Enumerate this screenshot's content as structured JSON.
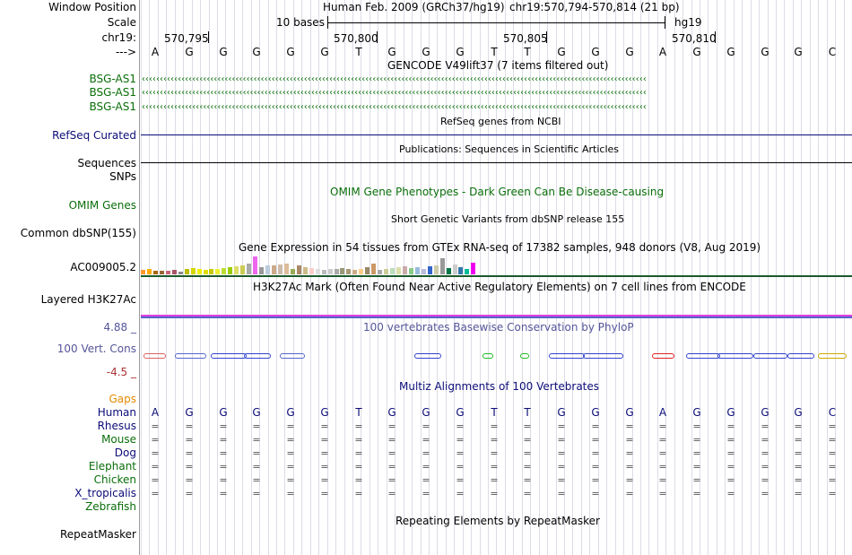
{
  "header": {
    "window_position_label": "Window Position",
    "scale_label": "Scale",
    "chr_label": "chr19:",
    "strand_label": "--->",
    "assembly": "Human Feb. 2009 (GRCh37/hg19)",
    "region": "chr19:570,794-570,814 (21 bp)",
    "scale_text": "10 bases",
    "db": "hg19",
    "ticks": [
      "570,795",
      "570,800",
      "570,805",
      "570,810"
    ]
  },
  "sequence": [
    "A",
    "G",
    "G",
    "G",
    "G",
    "G",
    "T",
    "G",
    "G",
    "G",
    "T",
    "T",
    "G",
    "G",
    "G",
    "A",
    "G",
    "G",
    "G",
    "G",
    "C"
  ],
  "tracks": {
    "gencode_title": "GENCODE V49lift37 (7 items filtered out)",
    "gencode_items": [
      "BSG-AS1",
      "BSG-AS1",
      "BSG-AS1"
    ],
    "refseq_title": "RefSeq genes from NCBI",
    "refseq_label": "RefSeq Curated",
    "pubs_title": "Publications: Sequences in Scientific Articles",
    "sequences_label": "Sequences",
    "snps_label": "SNPs",
    "omim_title": "OMIM Gene Phenotypes - Dark Green Can Be Disease-causing",
    "omim_label": "OMIM Genes",
    "dbsnp_title": "Short Genetic Variants from dbSNP release 155",
    "dbsnp_label": "Common dbSNP(155)",
    "gtex_title": "Gene Expression in 54 tissues from GTEx RNA-seq of 17382 samples, 948 donors (V8, Aug 2019)",
    "gtex_label": "AC009005.2",
    "h3k27_title": "H3K27Ac Mark (Often Found Near Active Regulatory Elements) on 7 cell lines from ENCODE",
    "h3k27_label": "Layered H3K27Ac",
    "phylop_title": "100 vertebrates Basewise Conservation by PhyloP",
    "phylop_label": "100 Vert. Cons",
    "phylop_max": "4.88 _",
    "phylop_min": "-4.5 _",
    "gaps_label": "Gaps",
    "multiz_title": "Multiz Alignments of 100 Vertebrates",
    "species": [
      "Human",
      "Rhesus",
      "Mouse",
      "Dog",
      "Elephant",
      "Chicken",
      "X_tropicalis",
      "Zebrafish"
    ],
    "rmsk_title": "Repeating Elements by RepeatMasker",
    "rmsk_label": "RepeatMasker"
  },
  "colors": {
    "gencode": "#0a6e0a",
    "refseq": "#0c0c78",
    "omim": "#0a6e0a",
    "phylop": "#555599",
    "gaps": "#e08a00",
    "h3k27": "#e040e0"
  },
  "gtex_values": [
    0.25,
    0.3,
    0.22,
    0.18,
    0.2,
    0.25,
    0.15,
    0.3,
    0.35,
    0.3,
    0.25,
    0.3,
    0.3,
    0.35,
    0.4,
    0.45,
    0.5,
    0.6,
    1.0,
    0.4,
    0.5,
    0.5,
    0.55,
    0.6,
    0.3,
    0.5,
    0.4,
    0.35,
    0.3,
    0.25,
    0.3,
    0.3,
    0.35,
    0.3,
    0.25,
    0.3,
    0.4,
    0.6,
    0.25,
    0.3,
    0.35,
    0.4,
    0.45,
    0.35,
    0.4,
    0.3,
    0.45,
    0.5,
    0.9,
    0.35,
    0.55,
    0.4,
    0.3,
    0.65
  ],
  "gtex_colors": [
    "#ff9933",
    "#ffaa00",
    "#aa6600",
    "#996633",
    "#cc6677",
    "#aa5566",
    "#8a8a8a",
    "#bbbb00",
    "#d6d600",
    "#eeee00",
    "#dddd00",
    "#c8c800",
    "#eeee33",
    "#bbdd33",
    "#99cc00",
    "#dddd66",
    "#cccc55",
    "#aaaaaa",
    "#ee66ee",
    "#999999",
    "#bbccdd",
    "#ccaa88",
    "#ccbbaa",
    "#ddbb99",
    "#99aa55",
    "#aa8866",
    "#ccbb88",
    "#ffcccc",
    "#dddddd",
    "#bbbbbb",
    "#cccccc",
    "#aaaaaa",
    "#999977",
    "#aa9977",
    "#ccaa88",
    "#ffcc88",
    "#998866",
    "#cc9966",
    "#aaaaaa",
    "#cccc99",
    "#bbddbb",
    "#ddddaa",
    "#ccaaaa",
    "#88cc88",
    "#99bbdd",
    "#bbbbdd",
    "#3366cc",
    "#ccccaa",
    "#999999",
    "#007744",
    "#cccccc",
    "#3377aa",
    "#00bb99",
    "#ee00ee"
  ]
}
